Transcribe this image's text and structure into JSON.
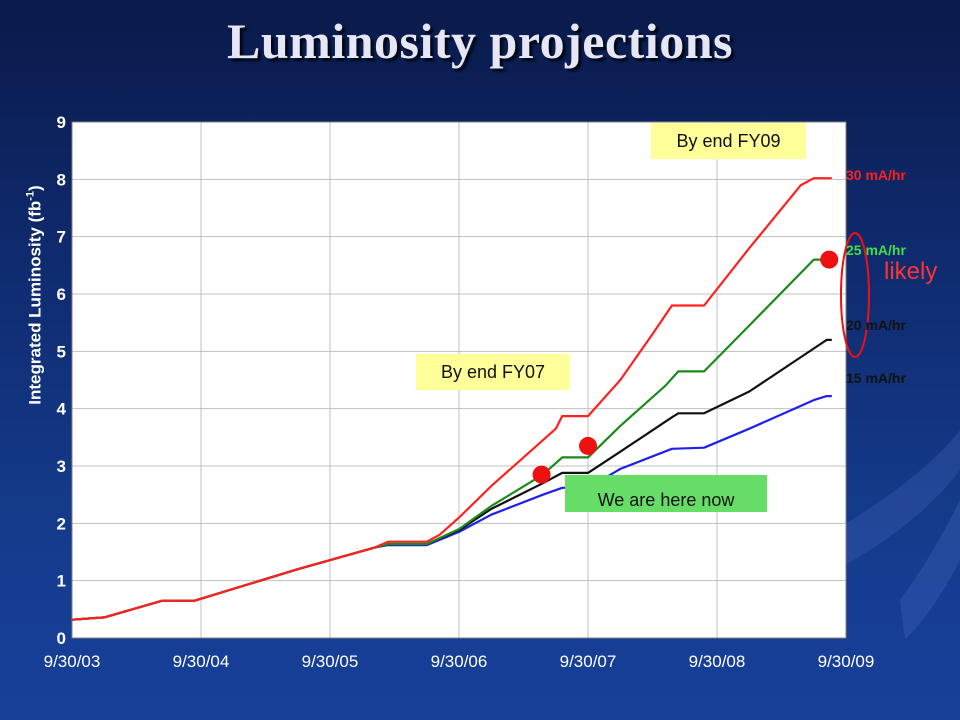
{
  "title": "Luminosity projections",
  "callouts": {
    "fy09": "By end FY09",
    "fy07": "By end FY07",
    "now": "We are here now",
    "likely": "likely"
  },
  "colors": {
    "background": "#0f2a6e",
    "plot_bg": "#ffffff",
    "grid": "#c0c0c0",
    "s30": "#ff2020",
    "s25": "#1a8a1a",
    "s20": "#111111",
    "s15": "#2020ee",
    "marker": "#ee1111",
    "callout_yellow": "#ffff99",
    "callout_green": "#66dd66"
  },
  "chart_data": {
    "type": "line",
    "title": "Luminosity projections",
    "xlabel": "",
    "ylabel": "Integrated Luminosity (fb⁻¹)",
    "ylabel_main": "Integrated Luminosity (fb",
    "ylabel_sup": "-1",
    "ylabel_end": ")",
    "ylim": [
      0,
      9
    ],
    "xlim": [
      2003.75,
      2009.75
    ],
    "yticks": [
      "0",
      "1",
      "2",
      "3",
      "4",
      "5",
      "6",
      "7",
      "8",
      "9"
    ],
    "xticks": [
      {
        "x": 2003.75,
        "label": "9/30/03"
      },
      {
        "x": 2004.75,
        "label": "9/30/04"
      },
      {
        "x": 2005.75,
        "label": "9/30/05"
      },
      {
        "x": 2006.75,
        "label": "9/30/06"
      },
      {
        "x": 2007.75,
        "label": "9/30/07"
      },
      {
        "x": 2008.75,
        "label": "9/30/08"
      },
      {
        "x": 2009.75,
        "label": "9/30/09"
      }
    ],
    "grid": true,
    "legend": "series labels at right end",
    "series": [
      {
        "name": "30 mA/hr",
        "color": "#ff2020",
        "points": [
          [
            2003.75,
            0.32
          ],
          [
            2004.0,
            0.36
          ],
          [
            2004.45,
            0.65
          ],
          [
            2004.7,
            0.65
          ],
          [
            2005.5,
            1.2
          ],
          [
            2006.1,
            1.58
          ],
          [
            2006.2,
            1.68
          ],
          [
            2006.5,
            1.68
          ],
          [
            2006.6,
            1.8
          ],
          [
            2006.75,
            2.1
          ],
          [
            2007.0,
            2.65
          ],
          [
            2007.5,
            3.65
          ],
          [
            2007.55,
            3.87
          ],
          [
            2007.75,
            3.87
          ],
          [
            2008.0,
            4.5
          ],
          [
            2008.25,
            5.3
          ],
          [
            2008.4,
            5.8
          ],
          [
            2008.65,
            5.8
          ],
          [
            2009.0,
            6.8
          ],
          [
            2009.4,
            7.9
          ],
          [
            2009.5,
            8.02
          ],
          [
            2009.64,
            8.02
          ]
        ]
      },
      {
        "name": "25 mA/hr",
        "color": "#1a8a1a",
        "points": [
          [
            2003.75,
            0.32
          ],
          [
            2004.0,
            0.36
          ],
          [
            2004.45,
            0.65
          ],
          [
            2004.7,
            0.65
          ],
          [
            2005.5,
            1.2
          ],
          [
            2006.1,
            1.58
          ],
          [
            2006.2,
            1.64
          ],
          [
            2006.5,
            1.64
          ],
          [
            2006.75,
            1.9
          ],
          [
            2007.0,
            2.3
          ],
          [
            2007.4,
            2.85
          ],
          [
            2007.55,
            3.15
          ],
          [
            2007.75,
            3.15
          ],
          [
            2008.0,
            3.7
          ],
          [
            2008.35,
            4.4
          ],
          [
            2008.45,
            4.65
          ],
          [
            2008.65,
            4.65
          ],
          [
            2009.0,
            5.45
          ],
          [
            2009.5,
            6.6
          ],
          [
            2009.64,
            6.6
          ]
        ]
      },
      {
        "name": "20 mA/hr",
        "color": "#111111",
        "points": [
          [
            2003.75,
            0.32
          ],
          [
            2004.0,
            0.36
          ],
          [
            2004.45,
            0.65
          ],
          [
            2004.7,
            0.65
          ],
          [
            2005.5,
            1.2
          ],
          [
            2006.1,
            1.58
          ],
          [
            2006.2,
            1.64
          ],
          [
            2006.5,
            1.64
          ],
          [
            2006.75,
            1.88
          ],
          [
            2007.0,
            2.25
          ],
          [
            2007.4,
            2.7
          ],
          [
            2007.55,
            2.88
          ],
          [
            2007.75,
            2.88
          ],
          [
            2008.0,
            3.25
          ],
          [
            2008.4,
            3.85
          ],
          [
            2008.45,
            3.92
          ],
          [
            2008.65,
            3.92
          ],
          [
            2009.0,
            4.3
          ],
          [
            2009.5,
            5.05
          ],
          [
            2009.6,
            5.2
          ],
          [
            2009.64,
            5.2
          ]
        ]
      },
      {
        "name": "15 mA/hr",
        "color": "#2020ee",
        "points": [
          [
            2003.75,
            0.32
          ],
          [
            2004.0,
            0.36
          ],
          [
            2004.45,
            0.65
          ],
          [
            2004.7,
            0.65
          ],
          [
            2005.5,
            1.2
          ],
          [
            2006.1,
            1.58
          ],
          [
            2006.2,
            1.62
          ],
          [
            2006.5,
            1.62
          ],
          [
            2006.75,
            1.85
          ],
          [
            2007.0,
            2.15
          ],
          [
            2007.4,
            2.5
          ],
          [
            2007.55,
            2.62
          ],
          [
            2007.75,
            2.62
          ],
          [
            2008.0,
            2.95
          ],
          [
            2008.4,
            3.3
          ],
          [
            2008.65,
            3.32
          ],
          [
            2009.0,
            3.65
          ],
          [
            2009.5,
            4.15
          ],
          [
            2009.6,
            4.22
          ],
          [
            2009.64,
            4.22
          ]
        ]
      }
    ],
    "markers": [
      {
        "x": 2007.39,
        "y": 2.85,
        "color": "#ee1111"
      },
      {
        "x": 2007.75,
        "y": 3.35,
        "color": "#ee1111"
      },
      {
        "x": 2009.62,
        "y": 6.6,
        "color": "#ee1111"
      }
    ]
  }
}
